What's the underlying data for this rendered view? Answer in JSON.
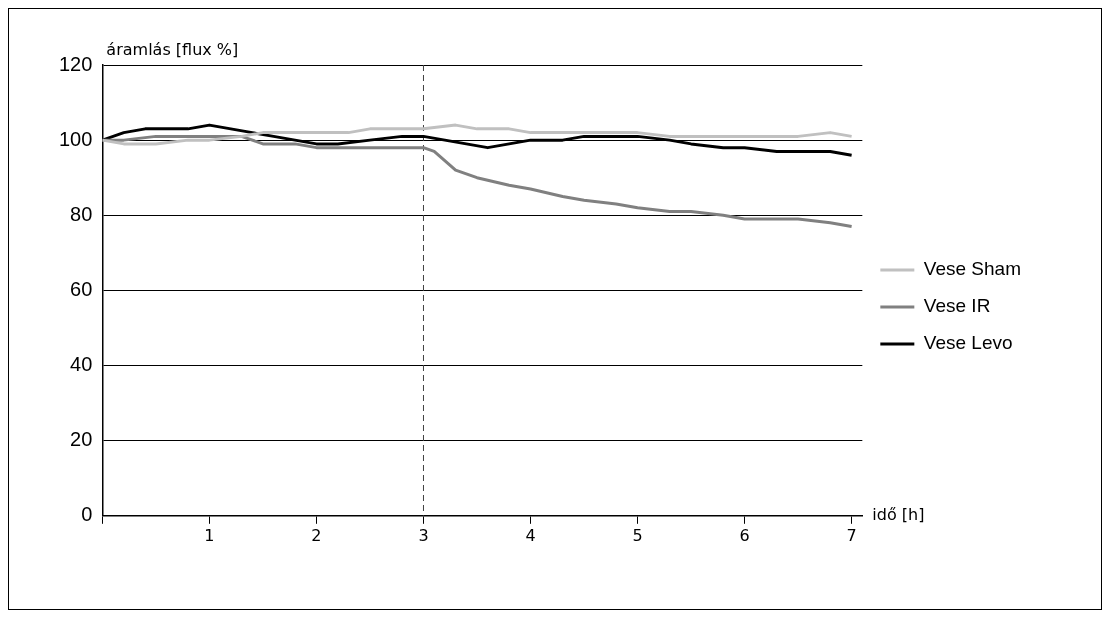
{
  "chart_data": {
    "type": "line",
    "ylabel": "áramlás [flux %]",
    "xlabel": "idő [h]",
    "xlim": [
      0,
      7.1
    ],
    "xticks": [
      {
        "value": 0,
        "label": null
      },
      1,
      2,
      3,
      4,
      5,
      6,
      7
    ],
    "ylim": [
      0,
      120
    ],
    "yticks": [
      0,
      20,
      40,
      60,
      80,
      100,
      120
    ],
    "grid": "y",
    "legend": "right",
    "marker": "none",
    "line_style": "solid",
    "ref_lines": [
      {
        "axis": "x",
        "value": 3,
        "label": null,
        "line_style": "dashed",
        "color": "#404040"
      }
    ],
    "series": [
      {
        "name": "Vese Sham",
        "color": "#c0c0c0",
        "x": [
          0,
          0.2,
          0.5,
          0.8,
          1,
          1.3,
          1.5,
          1.8,
          2,
          2.3,
          2.5,
          2.8,
          3,
          3.3,
          3.5,
          3.8,
          4,
          4.3,
          4.5,
          4.8,
          5,
          5.3,
          5.5,
          5.8,
          6,
          6.3,
          6.5,
          6.8,
          7
        ],
        "values": [
          100,
          99,
          99,
          100,
          100,
          101,
          102,
          102,
          102,
          102,
          103,
          103,
          103,
          104,
          103,
          103,
          102,
          102,
          102,
          102,
          102,
          101,
          101,
          101,
          101,
          101,
          101,
          102,
          101
        ]
      },
      {
        "name": "Vese IR",
        "color": "#808080",
        "x": [
          0,
          0.2,
          0.5,
          0.8,
          1,
          1.3,
          1.5,
          1.8,
          2,
          2.3,
          2.5,
          2.8,
          3,
          3.1,
          3.3,
          3.5,
          3.8,
          4,
          4.3,
          4.5,
          4.8,
          5,
          5.3,
          5.5,
          5.8,
          6,
          6.3,
          6.5,
          6.8,
          7
        ],
        "values": [
          100,
          100,
          101,
          101,
          101,
          101,
          99,
          99,
          98,
          98,
          98,
          98,
          98,
          97,
          92,
          90,
          88,
          87,
          85,
          84,
          83,
          82,
          81,
          81,
          80,
          79,
          79,
          79,
          78,
          77
        ]
      },
      {
        "name": "Vese Levo",
        "color": "#000000",
        "x": [
          0,
          0.2,
          0.4,
          0.6,
          0.8,
          1,
          1.2,
          1.4,
          1.6,
          1.8,
          2,
          2.2,
          2.5,
          2.8,
          3,
          3.2,
          3.4,
          3.6,
          3.8,
          4,
          4.3,
          4.5,
          4.8,
          5,
          5.3,
          5.5,
          5.8,
          6,
          6.3,
          6.5,
          6.8,
          7
        ],
        "values": [
          100,
          102,
          103,
          103,
          103,
          104,
          103,
          102,
          101,
          100,
          99,
          99,
          100,
          101,
          101,
          100,
          99,
          98,
          99,
          100,
          100,
          101,
          101,
          101,
          100,
          99,
          98,
          98,
          97,
          97,
          97,
          96
        ]
      }
    ]
  }
}
